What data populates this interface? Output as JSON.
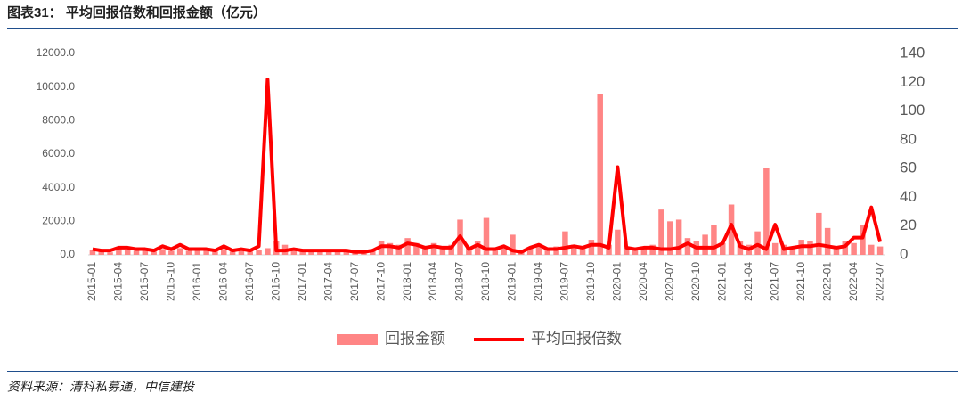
{
  "chart_data": {
    "type": "bar-line",
    "title": "图表31： 平均回报倍数和回报金额（亿元）",
    "source": "资料来源：清科私募通，中信建投",
    "categories": [
      "2015-01",
      null,
      null,
      "2015-04",
      null,
      null,
      "2015-07",
      null,
      null,
      "2015-10",
      null,
      null,
      "2016-01",
      null,
      null,
      "2016-04",
      null,
      null,
      "2016-07",
      null,
      null,
      "2016-10",
      null,
      null,
      "2017-01",
      null,
      null,
      "2017-04",
      null,
      null,
      "2017-07",
      null,
      null,
      "2017-10",
      null,
      null,
      "2018-01",
      null,
      null,
      "2018-04",
      null,
      null,
      "2018-07",
      null,
      null,
      "2018-10",
      null,
      null,
      "2019-01",
      null,
      null,
      "2019-04",
      null,
      null,
      "2019-07",
      null,
      null,
      "2019-10",
      null,
      null,
      "2020-01",
      null,
      null,
      "2020-04",
      null,
      null,
      "2020-07",
      null,
      null,
      "2020-10",
      null,
      null,
      "2021-01",
      null,
      null,
      "2021-04",
      null,
      null,
      "2021-07",
      null,
      null,
      "2021-10",
      null,
      null,
      "2022-01",
      null,
      null,
      "2022-04",
      null,
      null,
      "2022-07"
    ],
    "series": [
      {
        "name": "回报金额",
        "type": "bar",
        "color": "#ff8585",
        "values": [
          300,
          200,
          150,
          350,
          300,
          250,
          300,
          200,
          350,
          250,
          400,
          250,
          300,
          250,
          200,
          350,
          200,
          250,
          200,
          300,
          400,
          800,
          600,
          250,
          250,
          200,
          250,
          200,
          200,
          250,
          150,
          200,
          300,
          800,
          700,
          600,
          1000,
          700,
          500,
          700,
          500,
          600,
          2100,
          500,
          800,
          2200,
          400,
          500,
          1200,
          300,
          400,
          600,
          400,
          500,
          1400,
          600,
          500,
          900,
          9600,
          600,
          1500,
          400,
          300,
          500,
          600,
          2700,
          2000,
          2100,
          1000,
          800,
          1200,
          1800,
          700,
          3000,
          800,
          600,
          1400,
          5200,
          700,
          600,
          500,
          900,
          800,
          2500,
          1600,
          500,
          800,
          700,
          1800,
          600,
          500
        ]
      },
      {
        "name": "平均回报倍数",
        "type": "line",
        "axis": "y2",
        "color": "#ff0000",
        "values": [
          4,
          3,
          3,
          5,
          5,
          4,
          4,
          3,
          6,
          4,
          7,
          4,
          4,
          4,
          3,
          6,
          3,
          4,
          3,
          6,
          122,
          3,
          3,
          4,
          3,
          3,
          3,
          3,
          3,
          3,
          2,
          2,
          3,
          6,
          6,
          5,
          8,
          7,
          5,
          6,
          5,
          5,
          13,
          4,
          7,
          4,
          4,
          6,
          3,
          2,
          5,
          7,
          4,
          4,
          5,
          6,
          5,
          7,
          7,
          5,
          61,
          5,
          4,
          5,
          5,
          4,
          4,
          5,
          8,
          5,
          5,
          5,
          8,
          21,
          6,
          4,
          7,
          4,
          21,
          4,
          5,
          6,
          6,
          7,
          6,
          5,
          6,
          12,
          12,
          33,
          9
        ]
      }
    ],
    "ylim": [
      0,
      12000
    ],
    "yticks": [
      {
        "value": 0,
        "label": "0.0"
      },
      {
        "value": 2000,
        "label": "2000.0"
      },
      {
        "value": 4000,
        "label": "4000.0"
      },
      {
        "value": 6000,
        "label": "6000.0"
      },
      {
        "value": 8000,
        "label": "8000.0"
      },
      {
        "value": 10000,
        "label": "10000.0"
      },
      {
        "value": 12000,
        "label": "12000.0"
      }
    ],
    "y2lim": [
      0,
      140
    ],
    "y2ticks": [
      0,
      20,
      40,
      60,
      80,
      100,
      120,
      140
    ],
    "legend": "bottom"
  }
}
